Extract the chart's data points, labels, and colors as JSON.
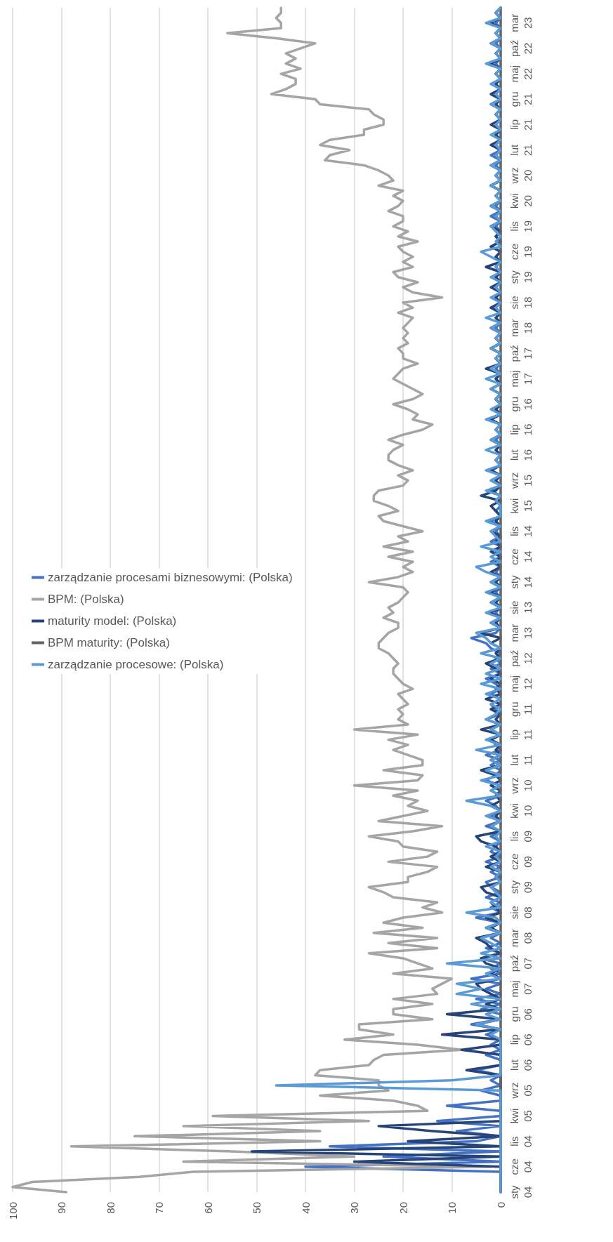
{
  "chart_data": {
    "type": "line",
    "orientation": "horizontal",
    "categories": [
      null,
      null,
      null,
      "mar 23",
      null,
      null,
      null,
      null,
      "paź 22",
      null,
      null,
      null,
      null,
      "maj 22",
      null,
      null,
      null,
      null,
      "gru 21",
      null,
      null,
      null,
      null,
      "lip 21",
      null,
      null,
      null,
      null,
      "lut 21",
      null,
      null,
      null,
      null,
      "wrz 20",
      null,
      null,
      null,
      null,
      "kwi 20",
      null,
      null,
      null,
      null,
      "lis 19",
      null,
      null,
      null,
      null,
      "cze 19",
      null,
      null,
      null,
      null,
      "sty 19",
      null,
      null,
      null,
      null,
      "sie 18",
      null,
      null,
      null,
      null,
      "mar 18",
      null,
      null,
      null,
      null,
      "paź 17",
      null,
      null,
      null,
      null,
      "maj 17",
      null,
      null,
      null,
      null,
      "gru 16",
      null,
      null,
      null,
      null,
      "lip 16",
      null,
      null,
      null,
      null,
      "lut 16",
      null,
      null,
      null,
      null,
      "wrz 15",
      null,
      null,
      null,
      null,
      "kwi 15",
      null,
      null,
      null,
      null,
      "lis 14",
      null,
      null,
      null,
      null,
      "cze 14",
      null,
      null,
      null,
      null,
      "sty 14",
      null,
      null,
      null,
      null,
      "sie 13",
      null,
      null,
      null,
      null,
      "mar 13",
      null,
      null,
      null,
      null,
      "paź 12",
      null,
      null,
      null,
      null,
      "maj 12",
      null,
      null,
      null,
      null,
      "gru 11",
      null,
      null,
      null,
      null,
      "lip 11",
      null,
      null,
      null,
      null,
      "lut 11",
      null,
      null,
      null,
      null,
      "wrz 10",
      null,
      null,
      null,
      null,
      "kwi 10",
      null,
      null,
      null,
      null,
      "lis 09",
      null,
      null,
      null,
      null,
      "cze 09",
      null,
      null,
      null,
      null,
      "sty 09",
      null,
      null,
      null,
      null,
      "sie 08",
      null,
      null,
      null,
      null,
      "mar 08",
      null,
      null,
      null,
      null,
      "paź 07",
      null,
      null,
      null,
      null,
      "maj 07",
      null,
      null,
      null,
      null,
      "gru 06",
      null,
      null,
      null,
      null,
      "lip 06",
      null,
      null,
      null,
      null,
      "lut 06",
      null,
      null,
      null,
      null,
      "wrz 05",
      null,
      null,
      null,
      null,
      "kwi 05",
      null,
      null,
      null,
      null,
      "lis 04",
      null,
      null,
      null,
      null,
      "cze 04",
      null,
      null,
      null,
      null,
      "sty 04"
    ],
    "series": [
      {
        "name": "zarządzanie procesami biznesowymi: (Polska)",
        "color": "#4472c4",
        "values": [
          0,
          1,
          0,
          1,
          0,
          1,
          0,
          1,
          0,
          1,
          0,
          1,
          0,
          1,
          0,
          1,
          0,
          1,
          0,
          2,
          0,
          1,
          0,
          1,
          0,
          1,
          0,
          1,
          0,
          2,
          0,
          1,
          0,
          1,
          0,
          2,
          0,
          1,
          0,
          1,
          0,
          2,
          0,
          1,
          0,
          1,
          0,
          2,
          0,
          1,
          0,
          1,
          0,
          1,
          0,
          1,
          0,
          1,
          0,
          2,
          0,
          1,
          0,
          1,
          0,
          1,
          0,
          2,
          0,
          1,
          0,
          1,
          0,
          1,
          0,
          2,
          0,
          1,
          0,
          1,
          0,
          2,
          0,
          1,
          0,
          1,
          0,
          1,
          0,
          1,
          0,
          2,
          0,
          1,
          0,
          2,
          0,
          1,
          0,
          1,
          0,
          2,
          0,
          1,
          0,
          2,
          0,
          1,
          0,
          2,
          0,
          1,
          0,
          2,
          0,
          1,
          0,
          2,
          0,
          1,
          0,
          2,
          0,
          1,
          6,
          3,
          2,
          0,
          1,
          0,
          2,
          0,
          3,
          1,
          0,
          2,
          0,
          2,
          1,
          0,
          3,
          0,
          2,
          0,
          2,
          1,
          0,
          3,
          0,
          2,
          0,
          1,
          3,
          0,
          2,
          0,
          3,
          1,
          0,
          2,
          0,
          3,
          0,
          2,
          0,
          1,
          2,
          0,
          3,
          0,
          2,
          0,
          3,
          2,
          0,
          3,
          0,
          2,
          0,
          5,
          0,
          3,
          0,
          2,
          0,
          3,
          0,
          4,
          0,
          2,
          0,
          6,
          0,
          3,
          0,
          5,
          0,
          4,
          0,
          0,
          6,
          0,
          3,
          0,
          2,
          0,
          3,
          0,
          0,
          5,
          0,
          2,
          0,
          4,
          0,
          0,
          11,
          0,
          0,
          13,
          0,
          9,
          0,
          5,
          35,
          0,
          24,
          0,
          40,
          0,
          0,
          0,
          0,
          0
        ]
      },
      {
        "name": "BPM: (Polska)",
        "color": "#a5a5a5",
        "values": [
          45,
          45,
          46,
          45,
          45,
          56,
          46,
          38,
          41,
          44,
          42,
          44,
          41,
          45,
          42,
          42,
          44,
          47,
          38,
          37,
          27,
          26,
          24,
          24,
          28,
          28,
          35,
          37,
          31,
          35,
          36,
          28,
          25,
          23,
          22,
          25,
          20,
          22,
          20,
          21,
          23,
          20,
          20,
          22,
          19,
          21,
          17,
          21,
          20,
          18,
          20,
          18,
          22,
          21,
          17,
          20,
          18,
          12,
          20,
          18,
          21,
          18,
          19,
          20,
          19,
          20,
          19,
          21,
          20,
          20,
          17,
          20,
          21,
          22,
          20,
          18,
          16,
          18,
          22,
          19,
          17,
          18,
          14,
          16,
          20,
          23,
          20,
          22,
          23,
          23,
          21,
          18,
          21,
          19,
          20,
          25,
          26,
          26,
          23,
          21,
          25,
          24,
          20,
          16,
          21,
          19,
          24,
          18,
          23,
          18,
          20,
          18,
          21,
          27,
          20,
          19,
          20,
          21,
          23,
          22,
          24,
          21,
          21,
          23,
          24,
          25,
          25,
          23,
          22,
          21,
          22,
          22,
          21,
          20,
          18,
          21,
          20,
          19,
          21,
          20,
          21,
          19,
          30,
          17,
          23,
          19,
          22,
          19,
          16,
          16,
          24,
          16,
          17,
          30,
          17,
          22,
          17,
          19,
          15,
          20,
          25,
          12,
          18,
          27,
          21,
          20,
          13,
          15,
          23,
          13,
          15,
          19,
          19,
          27,
          24,
          22,
          13,
          16,
          12,
          20,
          24,
          16,
          26,
          13,
          23,
          13,
          27,
          20,
          17,
          14,
          22,
          10,
          12,
          14,
          13,
          22,
          14,
          22,
          22,
          14,
          29,
          29,
          22,
          32,
          17,
          8,
          24,
          26,
          27,
          37,
          38,
          25,
          25,
          23,
          37,
          22,
          17,
          15,
          59,
          27,
          65,
          37,
          75,
          37,
          88,
          55,
          30,
          65,
          2,
          63,
          74,
          96,
          100,
          89
        ]
      },
      {
        "name": "maturity model: (Polska)",
        "color": "#264478",
        "values": [
          0,
          1,
          0,
          2,
          0,
          1,
          0,
          2,
          0,
          1,
          0,
          2,
          0,
          1,
          0,
          1,
          0,
          2,
          0,
          1,
          0,
          1,
          0,
          2,
          0,
          1,
          0,
          2,
          0,
          1,
          0,
          2,
          0,
          1,
          0,
          2,
          0,
          1,
          0,
          2,
          0,
          1,
          0,
          2,
          0,
          1,
          0,
          2,
          0,
          1,
          0,
          3,
          0,
          1,
          0,
          2,
          0,
          1,
          0,
          2,
          0,
          1,
          0,
          2,
          0,
          1,
          0,
          2,
          0,
          1,
          0,
          3,
          0,
          1,
          0,
          2,
          0,
          1,
          0,
          1,
          0,
          2,
          0,
          1,
          0,
          2,
          0,
          1,
          0,
          1,
          0,
          2,
          0,
          1,
          0,
          1,
          4,
          0,
          2,
          1,
          0,
          1,
          0,
          2,
          0,
          1,
          0,
          2,
          0,
          1,
          0,
          2,
          0,
          1,
          0,
          2,
          0,
          1,
          0,
          2,
          0,
          1,
          0,
          4,
          0,
          2,
          0,
          1,
          0,
          3,
          1,
          0,
          2,
          0,
          1,
          0,
          3,
          0,
          2,
          0,
          1,
          0,
          4,
          0,
          2,
          0,
          1,
          0,
          2,
          0,
          4,
          1,
          0,
          2,
          0,
          1,
          0,
          2,
          0,
          1,
          0,
          2,
          0,
          5,
          4,
          1,
          0,
          2,
          0,
          3,
          0,
          1,
          0,
          4,
          3,
          0,
          2,
          1,
          0,
          3,
          0,
          2,
          0,
          5,
          3,
          2,
          0,
          4,
          3,
          0,
          2,
          0,
          5,
          4,
          2,
          0,
          3,
          0,
          11,
          0,
          5,
          0,
          12,
          0,
          0,
          8,
          0,
          0,
          0,
          7,
          0,
          0,
          0,
          0,
          0,
          0,
          0,
          0,
          0,
          0,
          25,
          14,
          0,
          19,
          0,
          51,
          0,
          30,
          0,
          0,
          0,
          0,
          0,
          0
        ]
      },
      {
        "name": "BPM maturity: (Polska)",
        "color": "#636363",
        "values": [
          0,
          0,
          0,
          0,
          0,
          0,
          0,
          0,
          0,
          0,
          0,
          0,
          0,
          0,
          0,
          0,
          0,
          0,
          0,
          0,
          0,
          0,
          0,
          0,
          0,
          0,
          0,
          0,
          0,
          0,
          0,
          0,
          0,
          0,
          0,
          0,
          0,
          0,
          0,
          0,
          0,
          0,
          0,
          0,
          0,
          0,
          0,
          0,
          0,
          0,
          0,
          0,
          0,
          0,
          0,
          0,
          0,
          0,
          0,
          0,
          0,
          0,
          0,
          0,
          0,
          0,
          0,
          0,
          0,
          0,
          0,
          0,
          0,
          0,
          0,
          0,
          0,
          0,
          0,
          0,
          0,
          0,
          0,
          0,
          0,
          0,
          0,
          0,
          0,
          0,
          0,
          0,
          0,
          0,
          0,
          0,
          0,
          0,
          0,
          0,
          0,
          0,
          0,
          0,
          0,
          0,
          0,
          0,
          0,
          0,
          0,
          0,
          0,
          0,
          0,
          0,
          0,
          0,
          0,
          0,
          0,
          0,
          0,
          0,
          0,
          0,
          0,
          0,
          0,
          0,
          0,
          0,
          0,
          0,
          0,
          0,
          0,
          0,
          0,
          0,
          0,
          0,
          0,
          0,
          0,
          0,
          0,
          0,
          0,
          0,
          0,
          0,
          0,
          0,
          0,
          0,
          0,
          0,
          0,
          0,
          0,
          0,
          0,
          0,
          0,
          0,
          0,
          0,
          0,
          0,
          0,
          0,
          0,
          0,
          0,
          0,
          0,
          0,
          0,
          0,
          0,
          0,
          0,
          0,
          0,
          0,
          0,
          0,
          0,
          0,
          0,
          0,
          0,
          0,
          0,
          0,
          0,
          0,
          0,
          0,
          0,
          0,
          0,
          0,
          0,
          0,
          0,
          0,
          0,
          0,
          0,
          0,
          0,
          0,
          0,
          0,
          0,
          0,
          0,
          0,
          0,
          0,
          0,
          0,
          0,
          0,
          0,
          0,
          0,
          0,
          0,
          null,
          null,
          null
        ]
      },
      {
        "name": "zarządzanie procesowe: (Polska)",
        "color": "#5b9bd5",
        "values": [
          0,
          1,
          0,
          3,
          0,
          1,
          0,
          2,
          0,
          1,
          0,
          3,
          0,
          1,
          0,
          2,
          0,
          1,
          0,
          2,
          0,
          1,
          0,
          1,
          0,
          2,
          0,
          1,
          0,
          1,
          0,
          2,
          0,
          1,
          0,
          2,
          0,
          1,
          0,
          2,
          0,
          1,
          0,
          2,
          1,
          0,
          1,
          0,
          4,
          2,
          0,
          1,
          0,
          2,
          0,
          1,
          0,
          2,
          0,
          1,
          0,
          3,
          0,
          2,
          0,
          1,
          0,
          2,
          0,
          1,
          0,
          2,
          0,
          3,
          0,
          2,
          0,
          1,
          0,
          2,
          0,
          3,
          0,
          1,
          0,
          2,
          0,
          3,
          0,
          1,
          0,
          3,
          0,
          2,
          0,
          3,
          0,
          1,
          0,
          0,
          0,
          3,
          0,
          2,
          1,
          0,
          4,
          0,
          2,
          0,
          5,
          3,
          0,
          2,
          0,
          3,
          0,
          2,
          0,
          3,
          0,
          2,
          0,
          5,
          3,
          2,
          0,
          4,
          0,
          2,
          0,
          3,
          0,
          4,
          0,
          3,
          0,
          2,
          0,
          1,
          3,
          0,
          2,
          0,
          3,
          0,
          5,
          0,
          2,
          0,
          3,
          0,
          4,
          0,
          2,
          0,
          7,
          2,
          0,
          3,
          0,
          2,
          0,
          1,
          0,
          3,
          0,
          1,
          0,
          2,
          0,
          1,
          0,
          2,
          1,
          0,
          2,
          0,
          7,
          1,
          0,
          3,
          0,
          4,
          2,
          0,
          4,
          0,
          11,
          0,
          3,
          0,
          9,
          4,
          9,
          0,
          6,
          0,
          3,
          0,
          5,
          0,
          2,
          0,
          0,
          0,
          0,
          0,
          0,
          0,
          0,
          10,
          46,
          0,
          0,
          0,
          0,
          0,
          0,
          0,
          0,
          0,
          0,
          0,
          0,
          0,
          0,
          0,
          0,
          0,
          0,
          0,
          0,
          0
        ]
      }
    ],
    "xlim": [
      100,
      0
    ],
    "xticks": [
      0,
      10,
      20,
      30,
      40,
      50,
      60,
      70,
      80,
      90,
      100
    ],
    "grid": "x",
    "legend": "left",
    "marker": "none",
    "line_style": "solid"
  }
}
